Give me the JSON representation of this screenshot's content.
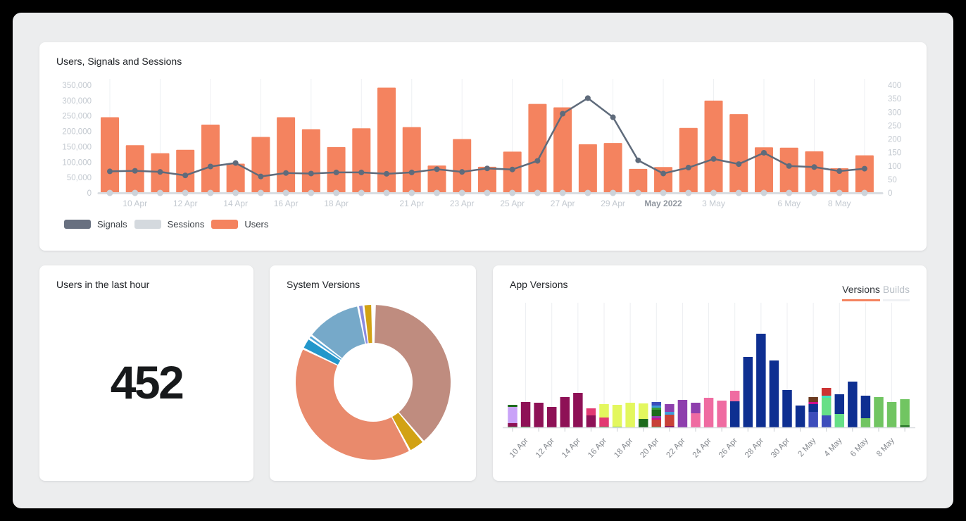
{
  "page": {
    "background": "#000000",
    "canvas_background": "#ecedee"
  },
  "users_last_hour": {
    "title": "Users in the last hour",
    "value": "452"
  },
  "app_versions": {
    "tabs": [
      {
        "label": "Versions",
        "active": true,
        "underline_color": "#f4835f"
      },
      {
        "label": "Builds",
        "active": false
      }
    ]
  },
  "chart_data": [
    {
      "id": "users-signals-sessions",
      "type": "bar+line",
      "title": "Users, Signals and Sessions",
      "categories": [
        "9 Apr",
        "10 Apr",
        "11 Apr",
        "12 Apr",
        "13 Apr",
        "14 Apr",
        "15 Apr",
        "16 Apr",
        "17 Apr",
        "18 Apr",
        "19 Apr",
        "20 Apr",
        "21 Apr",
        "22 Apr",
        "23 Apr",
        "24 Apr",
        "25 Apr",
        "26 Apr",
        "27 Apr",
        "28 Apr",
        "29 Apr",
        "30 Apr",
        "1 May",
        "2 May",
        "3 May",
        "4 May",
        "5 May",
        "6 May",
        "7 May",
        "8 May",
        "9 May"
      ],
      "series": [
        {
          "name": "Users",
          "type": "bar",
          "axis": "left",
          "color": "#f4835f",
          "values": [
            246000,
            155000,
            129000,
            140000,
            222000,
            95000,
            182000,
            246000,
            207000,
            149000,
            210000,
            342000,
            214000,
            89000,
            175000,
            85000,
            134000,
            289000,
            278000,
            158000,
            162000,
            78000,
            84000,
            211000,
            300000,
            256000,
            148000,
            147000,
            135000,
            80000,
            122000
          ]
        },
        {
          "name": "Signals",
          "type": "line",
          "axis": "right",
          "color": "#5f6b7b",
          "values": [
            80,
            82,
            78,
            65,
            98,
            111,
            61,
            74,
            72,
            76,
            76,
            71,
            76,
            88,
            78,
            91,
            87,
            119,
            294,
            352,
            281,
            121,
            72,
            94,
            126,
            107,
            149,
            100,
            96,
            81,
            90
          ]
        },
        {
          "name": "Sessions",
          "type": "line",
          "axis": "right",
          "color": "#cdd3da",
          "values": [
            0,
            0,
            0,
            0,
            0,
            0,
            0,
            0,
            0,
            0,
            0,
            0,
            0,
            0,
            0,
            0,
            0,
            0,
            0,
            0,
            0,
            0,
            0,
            0,
            0,
            0,
            0,
            0,
            0,
            0,
            0
          ]
        }
      ],
      "left_axis": {
        "min": 0,
        "max": 350000,
        "tick_step": 50000
      },
      "right_axis": {
        "min": 0,
        "max": 400,
        "tick_step": 50
      },
      "x_labels": {
        "1": "10 Apr",
        "3": "12 Apr",
        "5": "14 Apr",
        "7": "16 Apr",
        "9": "18 Apr",
        "12": "21 Apr",
        "14": "23 Apr",
        "16": "25 Apr",
        "18": "27 Apr",
        "20": "29 Apr",
        "22": "May 2022",
        "24": "3 May",
        "27": "6 May",
        "29": "8 May"
      },
      "bold_label_index": 22,
      "grid": "vertical",
      "legend": [
        {
          "label": "Signals",
          "color": "#687080"
        },
        {
          "label": "Sessions",
          "color": "#d4d9de"
        },
        {
          "label": "Users",
          "color": "#f4835f"
        }
      ]
    },
    {
      "id": "system-versions",
      "type": "pie",
      "title": "System Versions",
      "donut": true,
      "note": "segment labels are not shown in the UI; angles clockwise from 12 o'clock, white gaps between segments",
      "segments": [
        {
          "name": "rosy-brown",
          "color": "#bf8c7f",
          "start": 2,
          "end": 139,
          "percent": 38.1
        },
        {
          "name": "gold",
          "color": "#d2a214",
          "start": 140.5,
          "end": 151,
          "percent": 2.9
        },
        {
          "name": "salmon",
          "color": "#e98a6c",
          "start": 152.5,
          "end": 295,
          "percent": 39.6
        },
        {
          "name": "bright-blue",
          "color": "#2397cb",
          "start": 296.5,
          "end": 303.5,
          "percent": 1.9
        },
        {
          "name": "blue-sliver",
          "color": "#52a5d6",
          "start": 305,
          "end": 306.5,
          "percent": 0.4
        },
        {
          "name": "steel-blue",
          "color": "#76a9c9",
          "start": 308,
          "end": 348,
          "percent": 11.1
        },
        {
          "name": "periwinkle",
          "color": "#8b8bdf",
          "start": 349.5,
          "end": 352,
          "percent": 0.7
        },
        {
          "name": "gold-2",
          "color": "#d2a214",
          "start": 353.5,
          "end": 358.5,
          "percent": 1.4
        }
      ]
    },
    {
      "id": "app-versions",
      "type": "bar",
      "stacked": true,
      "title": "App Versions",
      "unit": "relative height (no y-axis shown in UI)",
      "categories": [
        "9 Apr",
        "10 Apr",
        "11 Apr",
        "12 Apr",
        "13 Apr",
        "14 Apr",
        "15 Apr",
        "16 Apr",
        "17 Apr",
        "18 Apr",
        "19 Apr",
        "20 Apr",
        "21 Apr",
        "22 Apr",
        "23 Apr",
        "24 Apr",
        "25 Apr",
        "26 Apr",
        "27 Apr",
        "28 Apr",
        "29 Apr",
        "30 Apr",
        "1 May",
        "2 May",
        "3 May",
        "4 May",
        "5 May",
        "6 May",
        "7 May",
        "8 May",
        "9 May"
      ],
      "x_labels": {
        "1": "10 Apr",
        "3": "12 Apr",
        "5": "14 Apr",
        "7": "16 Apr",
        "9": "18 Apr",
        "11": "20 Apr",
        "13": "22 Apr",
        "15": "24 Apr",
        "17": "26 Apr",
        "19": "28 Apr",
        "21": "30 Apr",
        "23": "2 May",
        "25": "4 May",
        "27": "6 May",
        "29": "8 May"
      },
      "palette": {
        "navy": "#0e2f91",
        "royal": "#3d4dbb",
        "darkMagenta": "#8e1156",
        "magenta": "#cc0e8a",
        "raspberry": "#e23a72",
        "brightPink": "#ef6ba1",
        "lavender": "#c9a3f8",
        "purple": "#8e3fad",
        "yellowGreen": "#e3f75e",
        "darkGreen": "#1d6b1d",
        "green": "#3a9c3a",
        "midGreen": "#71c562",
        "lightGreen": "#66df87",
        "turquoise": "#3fe3c4",
        "cyanBlue": "#3f9ad9",
        "red": "#c84137",
        "red2": "#cc3333",
        "brown": "#6b3a20",
        "forest": "#2d7a2d"
      },
      "bars": [
        [
          [
            "green",
            1
          ],
          [
            "darkMagenta",
            5
          ],
          [
            "lavender",
            23
          ],
          [
            "darkGreen",
            3
          ]
        ],
        [
          [
            "green",
            1
          ],
          [
            "darkMagenta",
            35
          ]
        ],
        [
          [
            "darkMagenta",
            35
          ]
        ],
        [
          [
            "darkMagenta",
            29
          ]
        ],
        [
          [
            "darkMagenta",
            43
          ]
        ],
        [
          [
            "darkMagenta",
            49
          ]
        ],
        [
          [
            "darkMagenta",
            17
          ],
          [
            "raspberry",
            10
          ]
        ],
        [
          [
            "green",
            1
          ],
          [
            "raspberry",
            13
          ],
          [
            "yellowGreen",
            19
          ]
        ],
        [
          [
            "midGreen",
            1
          ],
          [
            "yellowGreen",
            31
          ]
        ],
        [
          [
            "yellowGreen",
            35
          ]
        ],
        [
          [
            "darkGreen",
            12
          ],
          [
            "yellowGreen",
            22
          ]
        ],
        [
          [
            "green",
            1
          ],
          [
            "red",
            10
          ],
          [
            "magenta",
            2
          ],
          [
            "purple",
            3
          ],
          [
            "darkGreen",
            9
          ],
          [
            "green",
            3
          ],
          [
            "cyanBlue",
            3
          ],
          [
            "royal",
            5
          ]
        ],
        [
          [
            "darkMagenta",
            2
          ],
          [
            "red",
            16
          ],
          [
            "cyanBlue",
            4
          ],
          [
            "purple",
            11
          ]
        ],
        [
          [
            "purple",
            39
          ]
        ],
        [
          [
            "brightPink",
            20
          ],
          [
            "purple",
            15
          ]
        ],
        [
          [
            "brightPink",
            42
          ]
        ],
        [
          [
            "brightPink",
            38
          ]
        ],
        [
          [
            "navy",
            37
          ],
          [
            "brightPink",
            15
          ]
        ],
        [
          [
            "navy",
            100
          ]
        ],
        [
          [
            "navy",
            133
          ]
        ],
        [
          [
            "navy",
            95
          ]
        ],
        [
          [
            "navy",
            53
          ]
        ],
        [
          [
            "navy",
            31
          ]
        ],
        [
          [
            "royal",
            22
          ],
          [
            "navy",
            11
          ],
          [
            "magenta",
            3
          ],
          [
            "brown",
            7
          ]
        ],
        [
          [
            "royal",
            17
          ],
          [
            "lightGreen",
            25
          ],
          [
            "turquoise",
            3
          ],
          [
            "red2",
            11
          ]
        ],
        [
          [
            "lightGreen",
            19
          ],
          [
            "navy",
            28
          ]
        ],
        [
          [
            "navy",
            65
          ]
        ],
        [
          [
            "midGreen",
            13
          ],
          [
            "navy",
            32
          ]
        ],
        [
          [
            "midGreen",
            43
          ]
        ],
        [
          [
            "midGreen",
            36
          ]
        ],
        [
          [
            "forest",
            3
          ],
          [
            "midGreen",
            37
          ]
        ]
      ]
    }
  ]
}
